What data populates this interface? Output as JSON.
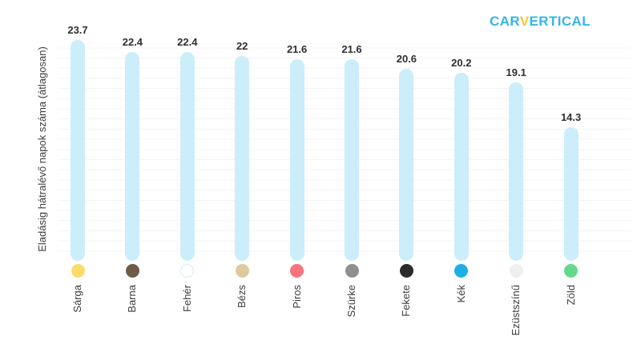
{
  "logo": {
    "part1": "CAR",
    "part2": "V",
    "part3": "ERTICAL",
    "color_main": "#35B5E8",
    "color_accent": "#FFC72C"
  },
  "chart_data": {
    "type": "bar",
    "title": "",
    "xlabel": "",
    "ylabel": "Eladásig hátralévő napok száma (átlagosan)",
    "categories": [
      "Sárga",
      "Barna",
      "Fehér",
      "Bézs",
      "Piros",
      "Szürke",
      "Fekete",
      "Kék",
      "Ezüstszínű",
      "Zöld"
    ],
    "values": [
      23.7,
      22.4,
      22.4,
      22,
      21.6,
      21.6,
      20.6,
      20.2,
      19.1,
      14.3
    ],
    "value_labels": [
      "23.7",
      "22.4",
      "22.4",
      "22",
      "21.6",
      "21.6",
      "20.6",
      "20.2",
      "19.1",
      "14.3"
    ],
    "bar_color": "#CBEEFA",
    "dot_colors": [
      "#FBDC6B",
      "#6E5B48",
      "#FFFFFF",
      "#DECA9E",
      "#F7737F",
      "#8F8F8F",
      "#2B2B2B",
      "#1FB0E3",
      "#EFEFEF",
      "#64D98B"
    ],
    "white_dot_border_color": "#D7EDF5",
    "ylim": [
      0,
      24
    ],
    "grid": "faint-horizontal",
    "legend": "none"
  }
}
